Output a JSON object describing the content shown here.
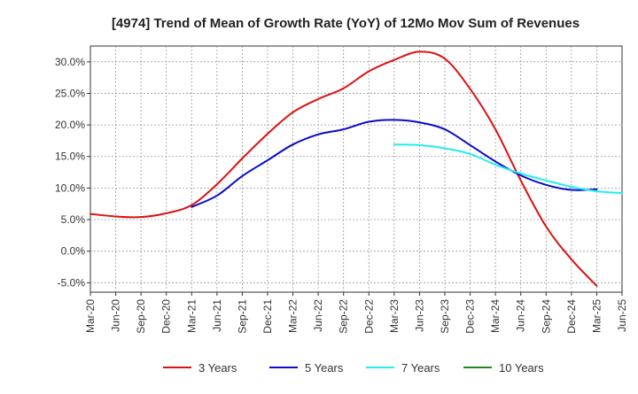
{
  "chart_data": {
    "type": "line",
    "title": "[4974]  Trend of Mean of Growth Rate (YoY) of 12Mo Mov Sum of Revenues",
    "xlabel": "",
    "ylabel": "",
    "ylim": [
      -6.5,
      32.5
    ],
    "y_ticks": [
      -5,
      0,
      5,
      10,
      15,
      20,
      25,
      30
    ],
    "y_tick_labels": [
      "-5.0%",
      "0.0%",
      "5.0%",
      "10.0%",
      "15.0%",
      "20.0%",
      "25.0%",
      "30.0%"
    ],
    "x_tick_labels": [
      "Mar-20",
      "Jun-20",
      "Sep-20",
      "Dec-20",
      "Mar-21",
      "Jun-21",
      "Sep-21",
      "Dec-21",
      "Mar-22",
      "Jun-22",
      "Sep-22",
      "Dec-22",
      "Mar-23",
      "Jun-23",
      "Sep-23",
      "Dec-23",
      "Mar-24",
      "Jun-24",
      "Sep-24",
      "Dec-24",
      "Mar-25",
      "Jun-25"
    ],
    "grid": true,
    "legend_position": "bottom",
    "series": [
      {
        "name": "3 Years",
        "color": "#dd1111",
        "start_index": 0,
        "values": [
          5.9,
          5.5,
          5.4,
          6.0,
          7.3,
          10.6,
          14.7,
          18.6,
          22.0,
          24.1,
          25.8,
          28.5,
          30.3,
          31.6,
          30.5,
          25.7,
          19.3,
          11.2,
          3.9,
          -1.3,
          -5.5
        ]
      },
      {
        "name": "5 Years",
        "color": "#0a0acc",
        "start_index": 4,
        "values": [
          7.0,
          8.8,
          11.9,
          14.4,
          16.9,
          18.5,
          19.3,
          20.5,
          20.8,
          20.4,
          19.3,
          16.8,
          14.2,
          12.0,
          10.5,
          9.7,
          9.8
        ]
      },
      {
        "name": "7 Years",
        "color": "#22eeee",
        "start_index": 12,
        "values": [
          16.9,
          16.8,
          16.3,
          15.4,
          13.7,
          12.3,
          11.2,
          10.2,
          9.5,
          9.2
        ]
      },
      {
        "name": "10 Years",
        "color": "#228822",
        "start_index": 0,
        "values": []
      }
    ]
  }
}
